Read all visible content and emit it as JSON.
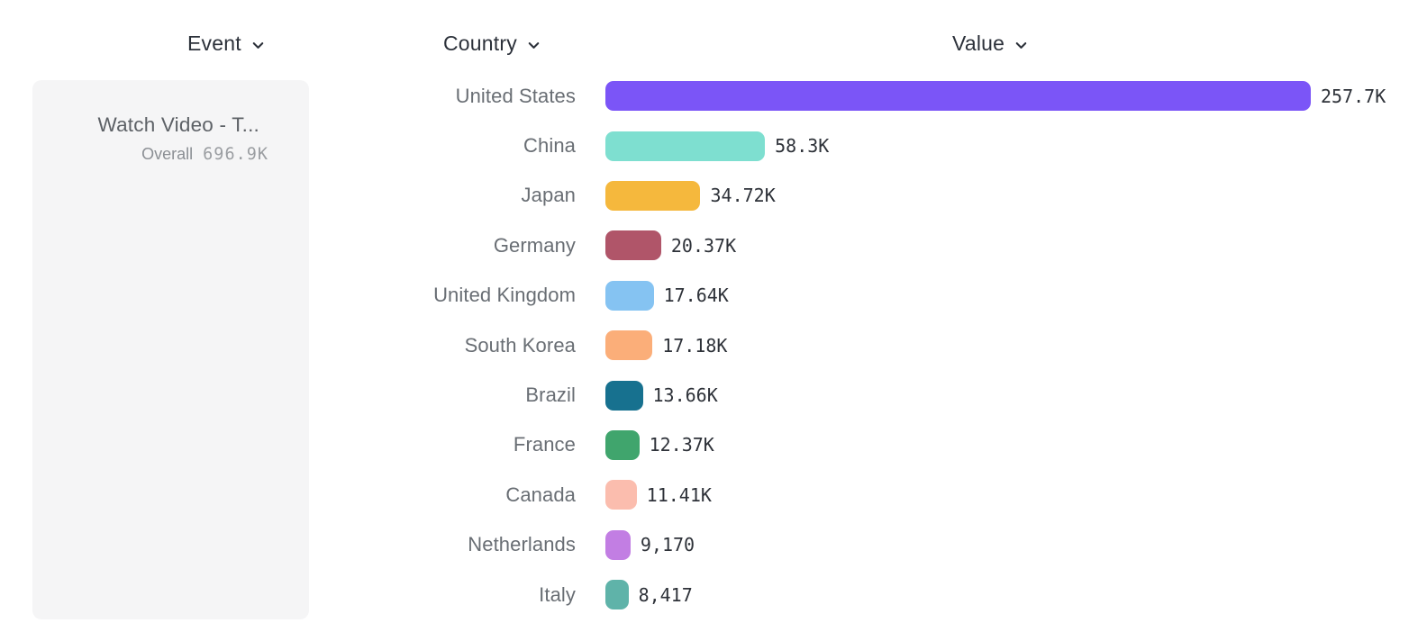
{
  "columns": {
    "event": {
      "label": "Event",
      "icon": "chevron-down-icon"
    },
    "country": {
      "label": "Country",
      "icon": "chevron-down-icon"
    },
    "value": {
      "label": "Value",
      "icon": "chevron-down-icon"
    }
  },
  "event_card": {
    "title": "Watch Video - T...",
    "overall_label": "Overall",
    "overall_value": "696.9K",
    "background_color": "#f5f5f6"
  },
  "chart_data": {
    "type": "bar",
    "orientation": "horizontal",
    "title": "",
    "xlabel": "",
    "ylabel": "",
    "grid": false,
    "legend_position": "none",
    "xlim": [
      0,
      257700
    ],
    "categories": [
      "United States",
      "China",
      "Japan",
      "Germany",
      "United Kingdom",
      "South Korea",
      "Brazil",
      "France",
      "Canada",
      "Netherlands",
      "Italy"
    ],
    "values": [
      257700,
      58300,
      34720,
      20370,
      17640,
      17180,
      13660,
      12370,
      11410,
      9170,
      8417
    ],
    "value_labels": [
      "257.7K",
      "58.3K",
      "34.72K",
      "20.37K",
      "17.64K",
      "17.18K",
      "13.66K",
      "12.37K",
      "11.41K",
      "9,170",
      "8,417"
    ],
    "bar_colors": [
      "#7B55F7",
      "#7EDFD0",
      "#F5B83D",
      "#B05569",
      "#85C3F2",
      "#FBAE79",
      "#17718F",
      "#40A56D",
      "#FBBDAE",
      "#C27EE3",
      "#5FB3A9"
    ]
  }
}
